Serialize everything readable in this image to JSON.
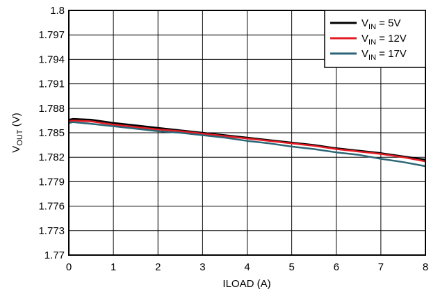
{
  "chart_data": {
    "type": "line",
    "xlabel": "ILOAD (A)",
    "ylabel": {
      "main": "V",
      "sub": "OUT",
      "suffix": " (V)"
    },
    "xlim": [
      0,
      8
    ],
    "ylim": [
      1.77,
      1.8
    ],
    "xticks": [
      0,
      1,
      2,
      3,
      4,
      5,
      6,
      7,
      8
    ],
    "yticks": [
      1.77,
      1.773,
      1.776,
      1.779,
      1.782,
      1.785,
      1.788,
      1.791,
      1.794,
      1.797,
      1.8
    ],
    "ytick_labels": [
      "1.77",
      "1.773",
      "1.776",
      "1.779",
      "1.782",
      "1.785",
      "1.788",
      "1.791",
      "1.794",
      "1.797",
      "1.8"
    ],
    "grid": true,
    "legend_position": "top-right",
    "series": [
      {
        "name": {
          "main": "V",
          "sub": "IN",
          "suffix": " = 5V"
        },
        "color": "#000000",
        "x": [
          0,
          0.1,
          0.5,
          1,
          1.5,
          2,
          2.5,
          3,
          3.5,
          4,
          4.5,
          5,
          5.5,
          6,
          6.5,
          7,
          7.5,
          8
        ],
        "y": [
          1.7866,
          1.7867,
          1.7866,
          1.7862,
          1.7859,
          1.7856,
          1.7853,
          1.785,
          1.7847,
          1.7844,
          1.7841,
          1.7838,
          1.7835,
          1.7831,
          1.7828,
          1.7825,
          1.7821,
          1.7817
        ]
      },
      {
        "name": {
          "main": "V",
          "sub": "IN",
          "suffix": " = 12V"
        },
        "color": "#e31b23",
        "x": [
          0,
          0.1,
          0.5,
          1,
          1.5,
          2,
          2.5,
          3,
          3.5,
          4,
          4.5,
          5,
          5.5,
          6,
          6.5,
          7,
          7.5,
          8
        ],
        "y": [
          1.7864,
          1.7865,
          1.7864,
          1.786,
          1.7857,
          1.7854,
          1.7852,
          1.7849,
          1.7846,
          1.7843,
          1.784,
          1.7837,
          1.7834,
          1.783,
          1.7827,
          1.7824,
          1.782,
          1.7815
        ]
      },
      {
        "name": {
          "main": "V",
          "sub": "IN",
          "suffix": " = 17V"
        },
        "color": "#2b6677",
        "x": [
          0,
          0.1,
          0.5,
          1,
          1.5,
          2,
          2.5,
          3,
          3.5,
          4,
          4.5,
          5,
          5.5,
          6,
          6.5,
          7,
          7.5,
          8
        ],
        "y": [
          1.7862,
          1.7863,
          1.7861,
          1.7858,
          1.7855,
          1.7852,
          1.785,
          1.7847,
          1.7844,
          1.784,
          1.7837,
          1.7833,
          1.783,
          1.7826,
          1.7823,
          1.7818,
          1.7814,
          1.7809
        ]
      }
    ]
  }
}
